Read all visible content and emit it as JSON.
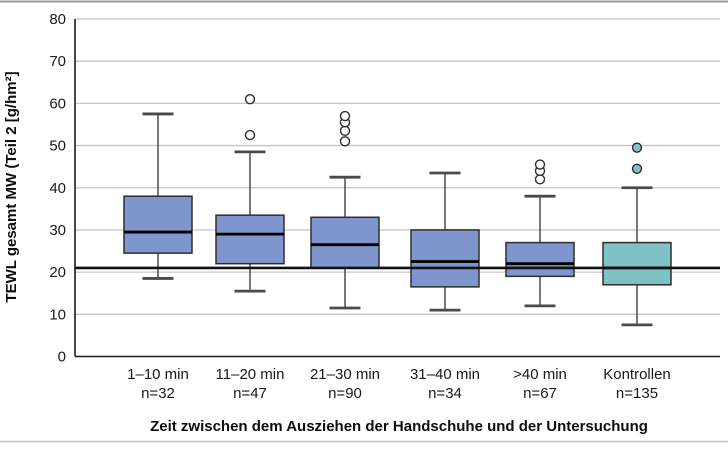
{
  "chart_data": {
    "type": "boxplot",
    "title": "",
    "xlabel": "Zeit zwischen dem Ausziehen der Handschuhe und der Untersuchung",
    "ylabel": "TEWL gesamt MW (Teil 2 [g/hm²]",
    "ylim": [
      0,
      80
    ],
    "yticks": [
      0,
      10,
      20,
      30,
      40,
      50,
      60,
      70,
      80
    ],
    "grid": true,
    "legend": "none",
    "reference_line": {
      "value": 21
    },
    "colors": {
      "exposed_fill": "#7E96CD",
      "control_fill": "#7FC2C6",
      "box_stroke": "#2e2e2e",
      "median": "#000000",
      "whisker": "#4a4a4a",
      "gridline": "#c6c6c6",
      "axis": "#1a1a1a",
      "reference": "#111111"
    },
    "groups": [
      {
        "label": "1–10 min",
        "n_label": "n=32",
        "whisker_low": 18.5,
        "q1": 24.5,
        "median": 29.5,
        "q3": 38,
        "whisker_high": 57.5,
        "outliers": [],
        "fill": "#7E96CD",
        "outlier_fill": "#ffffff"
      },
      {
        "label": "11–20 min",
        "n_label": "n=47",
        "whisker_low": 15.5,
        "q1": 22,
        "median": 29,
        "q3": 33.5,
        "whisker_high": 48.5,
        "outliers": [
          52.5,
          61
        ],
        "fill": "#7E96CD",
        "outlier_fill": "#ffffff"
      },
      {
        "label": "21–30 min",
        "n_label": "n=90",
        "whisker_low": 11.5,
        "q1": 21,
        "median": 26.5,
        "q3": 33,
        "whisker_high": 42.5,
        "outliers": [
          51,
          53.5,
          55.5,
          57
        ],
        "fill": "#7E96CD",
        "outlier_fill": "#ffffff"
      },
      {
        "label": "31–40 min",
        "n_label": "n=34",
        "whisker_low": 11,
        "q1": 16.5,
        "median": 22.5,
        "q3": 30,
        "whisker_high": 43.5,
        "outliers": [],
        "fill": "#7E96CD",
        "outlier_fill": "#ffffff"
      },
      {
        "label": ">40 min",
        "n_label": "n=67",
        "whisker_low": 12,
        "q1": 19,
        "median": 22,
        "q3": 27,
        "whisker_high": 38,
        "outliers": [
          42,
          44,
          45.5
        ],
        "fill": "#7E96CD",
        "outlier_fill": "#ffffff"
      },
      {
        "label": "Kontrollen",
        "n_label": "n=135",
        "whisker_low": 7.5,
        "q1": 17,
        "median": 21,
        "q3": 27,
        "whisker_high": 40,
        "outliers": [
          44.5,
          49.5
        ],
        "fill": "#7FC2C6",
        "outlier_fill": "#7FC2C6"
      }
    ]
  }
}
